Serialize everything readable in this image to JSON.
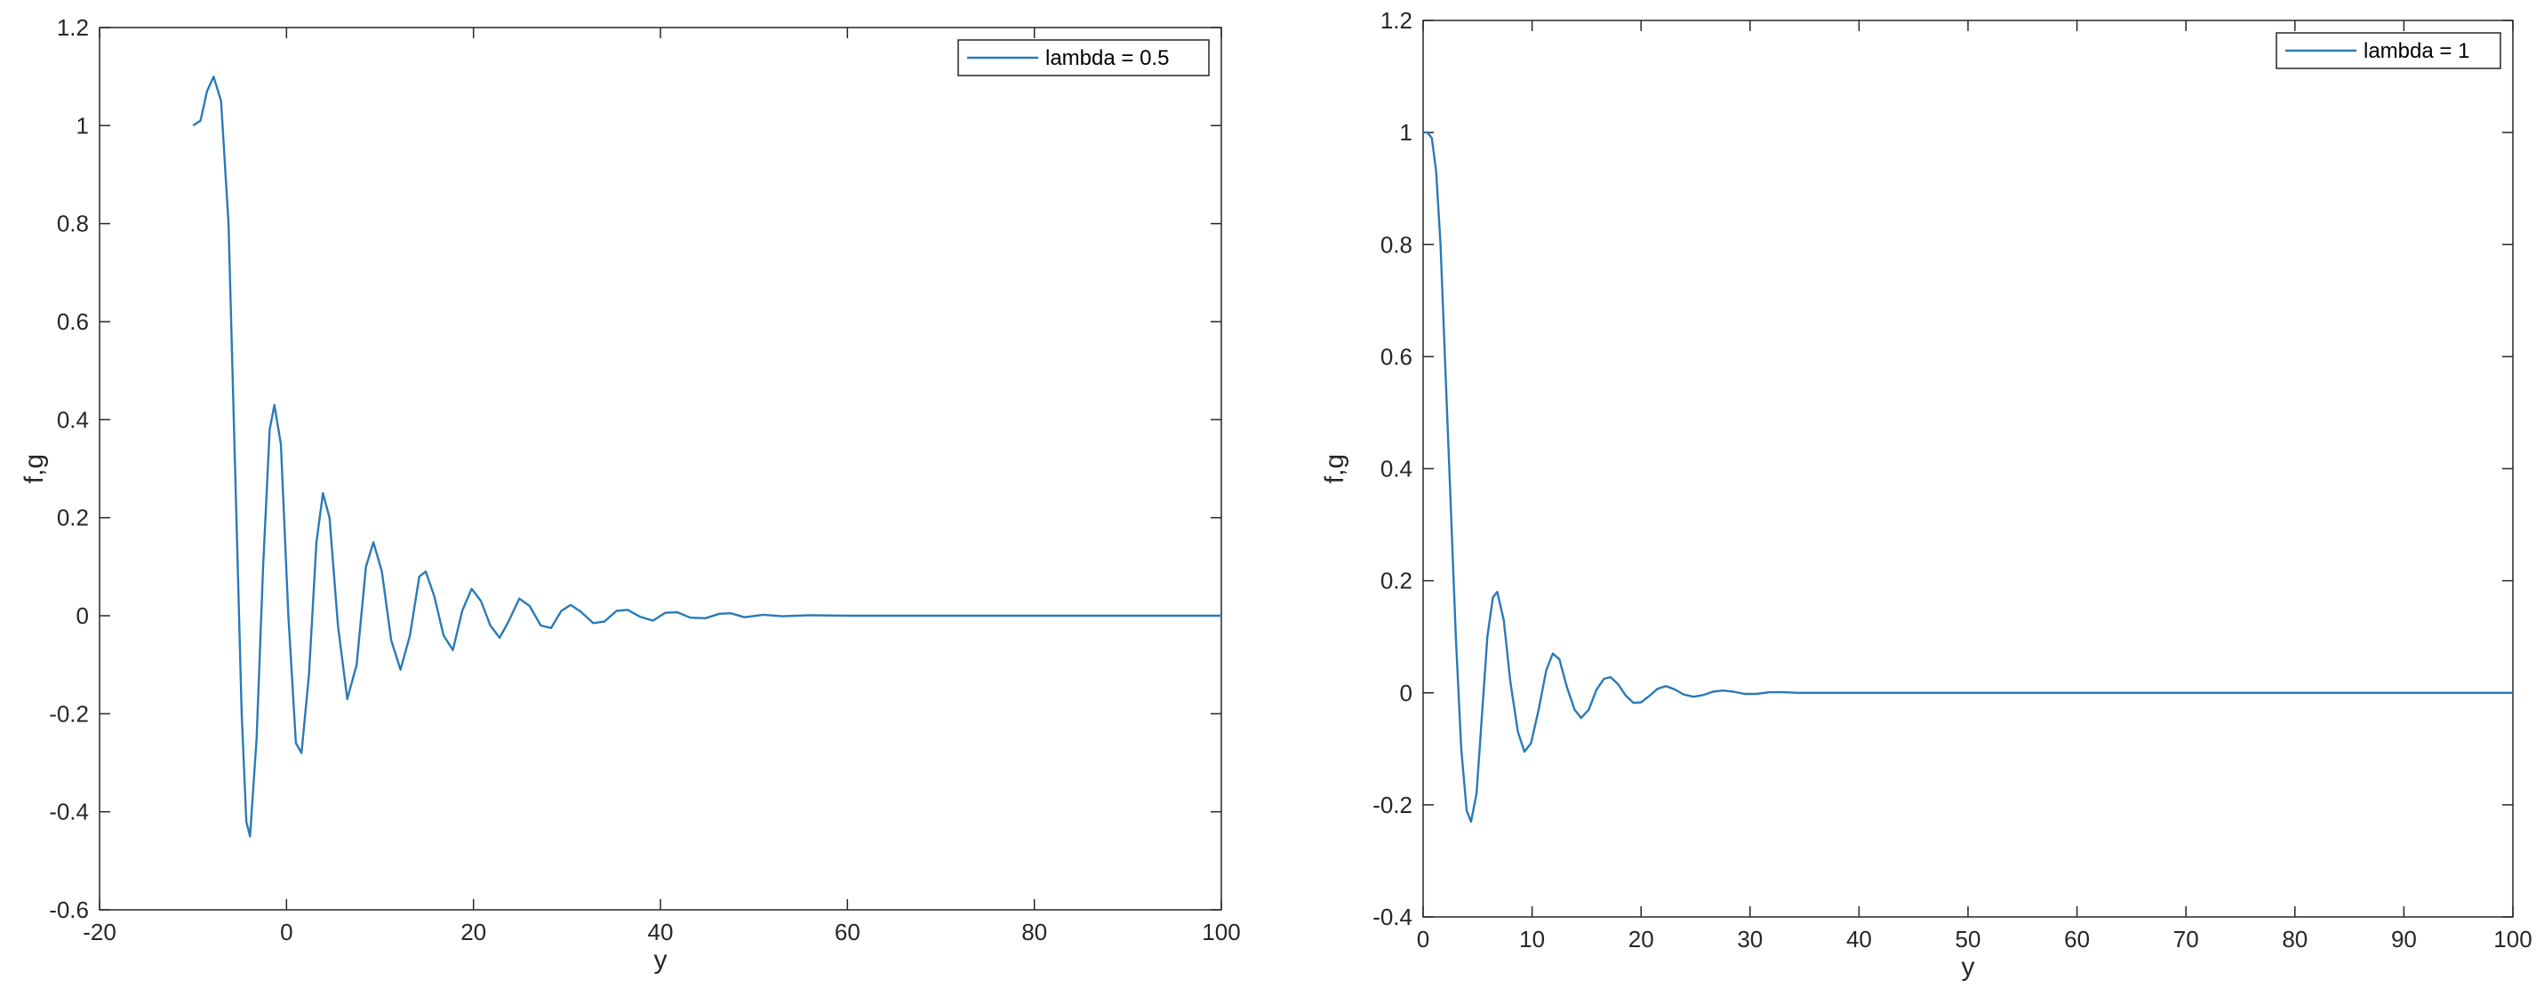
{
  "chart_data": [
    {
      "type": "line",
      "xlabel": "y",
      "ylabel": "f,g",
      "xlim": [
        -20,
        100
      ],
      "ylim": [
        -0.6,
        1.2
      ],
      "xticks": [
        "-20",
        "0",
        "20",
        "40",
        "60",
        "80",
        "100"
      ],
      "yticks": [
        "-0.6",
        "-0.4",
        "-0.2",
        "0",
        "0.2",
        "0.4",
        "0.6",
        "0.8",
        "1",
        "1.2"
      ],
      "legend_position": "top-right",
      "grid": false,
      "series": [
        {
          "name": "lambda = 0.5",
          "color": "#2a7ab8",
          "points": [
            [
              -10,
              1.0
            ],
            [
              -9.2,
              1.01
            ],
            [
              -8.5,
              1.07
            ],
            [
              -7.8,
              1.1
            ],
            [
              -7.0,
              1.05
            ],
            [
              -6.2,
              0.8
            ],
            [
              -5.5,
              0.3
            ],
            [
              -4.8,
              -0.2
            ],
            [
              -4.3,
              -0.42
            ],
            [
              -3.9,
              -0.45
            ],
            [
              -3.2,
              -0.25
            ],
            [
              -2.5,
              0.1
            ],
            [
              -1.8,
              0.38
            ],
            [
              -1.3,
              0.43
            ],
            [
              -0.6,
              0.35
            ],
            [
              0.2,
              0.0
            ],
            [
              1.0,
              -0.26
            ],
            [
              1.6,
              -0.28
            ],
            [
              2.4,
              -0.12
            ],
            [
              3.2,
              0.15
            ],
            [
              3.9,
              0.25
            ],
            [
              4.6,
              0.2
            ],
            [
              5.5,
              -0.02
            ],
            [
              6.5,
              -0.17
            ],
            [
              7.5,
              -0.1
            ],
            [
              8.5,
              0.1
            ],
            [
              9.3,
              0.15
            ],
            [
              10.2,
              0.09
            ],
            [
              11.2,
              -0.05
            ],
            [
              12.2,
              -0.11
            ],
            [
              13.2,
              -0.04
            ],
            [
              14.2,
              0.08
            ],
            [
              14.9,
              0.09
            ],
            [
              15.8,
              0.04
            ],
            [
              16.8,
              -0.04
            ],
            [
              17.8,
              -0.07
            ],
            [
              18.8,
              0.01
            ],
            [
              19.8,
              0.055
            ],
            [
              20.8,
              0.03
            ],
            [
              21.8,
              -0.02
            ],
            [
              22.8,
              -0.045
            ],
            [
              23.8,
              -0.01
            ],
            [
              24.9,
              0.035
            ],
            [
              26.0,
              0.02
            ],
            [
              27.2,
              -0.02
            ],
            [
              28.3,
              -0.025
            ],
            [
              29.4,
              0.01
            ],
            [
              30.4,
              0.022
            ],
            [
              31.5,
              0.008
            ],
            [
              32.8,
              -0.015
            ],
            [
              34.0,
              -0.012
            ],
            [
              35.3,
              0.01
            ],
            [
              36.5,
              0.012
            ],
            [
              37.8,
              -0.002
            ],
            [
              39.2,
              -0.01
            ],
            [
              40.5,
              0.006
            ],
            [
              41.8,
              0.007
            ],
            [
              43.2,
              -0.004
            ],
            [
              44.8,
              -0.005
            ],
            [
              46.3,
              0.004
            ],
            [
              47.5,
              0.005
            ],
            [
              49.0,
              -0.003
            ],
            [
              51.0,
              0.002
            ],
            [
              53.0,
              -0.001
            ],
            [
              56.0,
              0.001
            ],
            [
              60.0,
              0.0
            ],
            [
              70.0,
              0.0
            ],
            [
              80.0,
              0.0
            ],
            [
              90.0,
              0.0
            ],
            [
              100.0,
              0.0
            ]
          ]
        }
      ]
    },
    {
      "type": "line",
      "xlabel": "y",
      "ylabel": "f,g",
      "xlim": [
        0,
        100
      ],
      "ylim": [
        -0.4,
        1.2
      ],
      "xticks": [
        "0",
        "10",
        "20",
        "30",
        "40",
        "50",
        "60",
        "70",
        "80",
        "90",
        "100"
      ],
      "yticks": [
        "-0.4",
        "-0.2",
        "0",
        "0.2",
        "0.4",
        "0.6",
        "0.8",
        "1",
        "1.2"
      ],
      "legend_position": "top-right",
      "grid": false,
      "series": [
        {
          "name": "lambda = 1",
          "color": "#2a7ab8",
          "points": [
            [
              0,
              1.0
            ],
            [
              0.4,
              1.0
            ],
            [
              0.8,
              0.99
            ],
            [
              1.2,
              0.93
            ],
            [
              1.6,
              0.8
            ],
            [
              2.0,
              0.6
            ],
            [
              2.5,
              0.35
            ],
            [
              3.0,
              0.1
            ],
            [
              3.5,
              -0.1
            ],
            [
              4.0,
              -0.21
            ],
            [
              4.4,
              -0.23
            ],
            [
              4.9,
              -0.18
            ],
            [
              5.4,
              -0.04
            ],
            [
              5.9,
              0.1
            ],
            [
              6.4,
              0.17
            ],
            [
              6.8,
              0.18
            ],
            [
              7.4,
              0.13
            ],
            [
              8.0,
              0.02
            ],
            [
              8.7,
              -0.07
            ],
            [
              9.3,
              -0.105
            ],
            [
              9.9,
              -0.09
            ],
            [
              10.6,
              -0.03
            ],
            [
              11.3,
              0.04
            ],
            [
              11.9,
              0.07
            ],
            [
              12.5,
              0.06
            ],
            [
              13.2,
              0.01
            ],
            [
              13.9,
              -0.03
            ],
            [
              14.5,
              -0.045
            ],
            [
              15.2,
              -0.03
            ],
            [
              15.9,
              0.005
            ],
            [
              16.6,
              0.025
            ],
            [
              17.2,
              0.028
            ],
            [
              17.9,
              0.015
            ],
            [
              18.6,
              -0.005
            ],
            [
              19.3,
              -0.018
            ],
            [
              20.0,
              -0.017
            ],
            [
              20.8,
              -0.005
            ],
            [
              21.5,
              0.007
            ],
            [
              22.3,
              0.012
            ],
            [
              23.1,
              0.006
            ],
            [
              23.9,
              -0.003
            ],
            [
              24.8,
              -0.007
            ],
            [
              25.7,
              -0.004
            ],
            [
              26.6,
              0.002
            ],
            [
              27.5,
              0.004
            ],
            [
              28.5,
              0.002
            ],
            [
              29.5,
              -0.002
            ],
            [
              30.6,
              -0.002
            ],
            [
              31.8,
              0.001
            ],
            [
              33.0,
              0.001
            ],
            [
              34.5,
              0.0
            ],
            [
              40.0,
              0.0
            ],
            [
              50.0,
              0.0
            ],
            [
              60.0,
              0.0
            ],
            [
              70.0,
              0.0
            ],
            [
              80.0,
              0.0
            ],
            [
              90.0,
              0.0
            ],
            [
              100.0,
              0.0
            ]
          ]
        }
      ]
    }
  ]
}
